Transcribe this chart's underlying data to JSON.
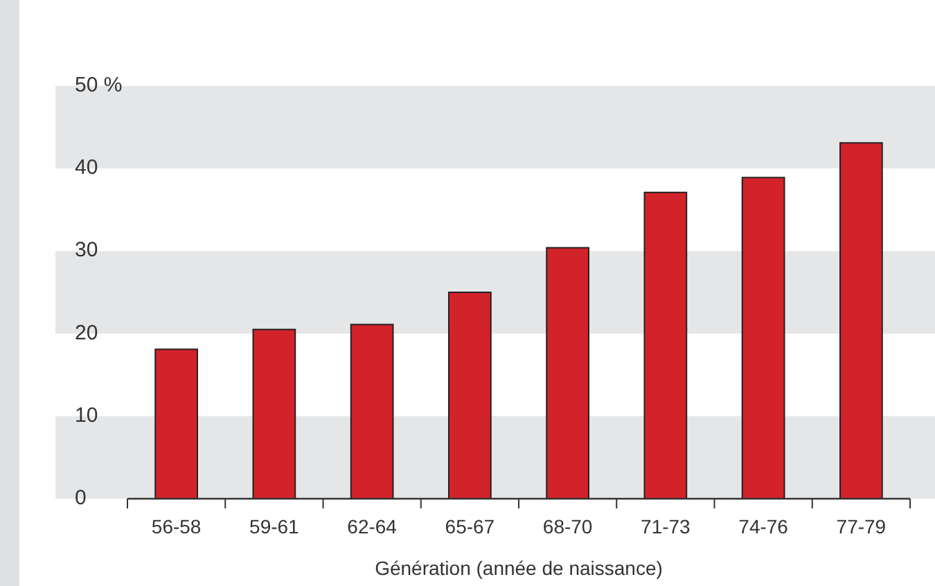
{
  "chart_data": {
    "type": "bar",
    "xlabel": "Génération (année de naissance)",
    "categories": [
      "56-58",
      "59-61",
      "62-64",
      "65-67",
      "68-70",
      "71-73",
      "74-76",
      "77-79"
    ],
    "values": [
      18.1,
      20.5,
      21.1,
      25.0,
      30.4,
      37.1,
      38.9,
      43.1
    ],
    "color": "#d2232a",
    "ylim": [
      0,
      50
    ],
    "yticks": [
      0,
      10,
      20,
      30,
      40,
      {
        "value": 50,
        "label": "50 %"
      }
    ],
    "bands": [
      {
        "axis": "y",
        "from": 0,
        "to": 10,
        "color": "#e5e6e8"
      },
      {
        "axis": "y",
        "from": 20,
        "to": 30,
        "color": "#e5e6e8"
      },
      {
        "axis": "y",
        "from": 40,
        "to": 50,
        "color": "#e5e6e8"
      }
    ]
  }
}
